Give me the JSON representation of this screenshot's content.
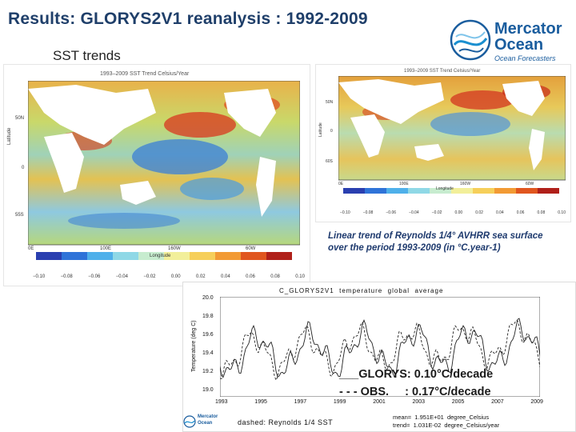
{
  "slide": {
    "title": "Results: GLORYS2V1 reanalysis :  1992-2009",
    "subtitle": "SST trends"
  },
  "logo": {
    "word1": "Mercator",
    "word2": "Ocean",
    "tagline": "Ocean Forecasters"
  },
  "left_map": {
    "title": "1993–2009 SST Trend Celsius/Year",
    "xlabel": "Longitude",
    "ylabel": "Latitude",
    "lat_ticks": [
      "50N",
      "0",
      "55S"
    ],
    "lon_ticks": [
      "0E",
      "100E",
      "160W",
      "60W"
    ],
    "colorbar_ticks": [
      "−0.10",
      "−0.08",
      "−0.06",
      "−0.04",
      "−0.02",
      "0.00",
      "0.02",
      "0.04",
      "0.06",
      "0.08",
      "0.10"
    ]
  },
  "right_map": {
    "title": "1993–2009 SST Trend Celsius/Year",
    "xlabel": "Longitude",
    "ylabel": "Latitude",
    "lat_ticks": [
      "50N",
      "0",
      "60S"
    ],
    "lon_ticks": [
      "0E",
      "100E",
      "160W",
      "60W"
    ],
    "colorbar_ticks": [
      "−0.10",
      "−0.08",
      "−0.06",
      "−0.04",
      "−0.02",
      "0.00",
      "0.02",
      "0.04",
      "0.06",
      "0.08",
      "0.10"
    ]
  },
  "caption": "Linear trend of Reynolds 1/4° AVHRR sea surface over the period 1993-2009 (in °C.year-1)",
  "timeseries": {
    "title": "C_GLORYS2V1  temperature  global  average",
    "ylabel": "Temperature (deg C)",
    "y_ticks": [
      "20.0",
      "19.8",
      "19.6",
      "19.4",
      "19.2",
      "19.0"
    ],
    "x_ticks": [
      "1993",
      "1995",
      "1997",
      "1999",
      "2001",
      "2003",
      "2005",
      "2007",
      "2009"
    ],
    "footer_left": "dashed: Reynolds 1/4 SST",
    "footer_right_1": "mean=  1.951E+01  degree_Celsius",
    "footer_right_2": "trend=  1.031E-02  degree_Celsius/year"
  },
  "legend": {
    "glorys_line": "___GLORYS: 0.10°C/decade",
    "obs_line": "- - - OBS.     : 0.17°C/decade"
  },
  "colors": {
    "title": "#1f3f6a",
    "brand": "#1a5d9e",
    "caption": "#1e3a6e",
    "land": "#ffffff",
    "warm": "#d4301c",
    "cool": "#2a62c9"
  }
}
